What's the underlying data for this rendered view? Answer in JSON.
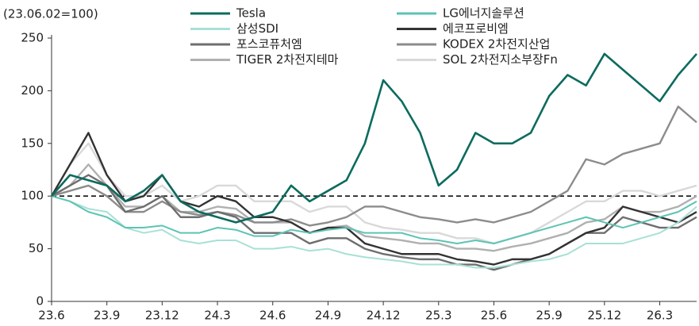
{
  "chart_data": {
    "type": "line",
    "y_label": "(23.06.02=100)",
    "categories": [
      "23.6",
      null,
      null,
      "23.9",
      null,
      null,
      "23.12",
      null,
      null,
      "24.3",
      null,
      null,
      "24.6",
      null,
      null,
      "24.9",
      null,
      null,
      "24.12",
      null,
      null,
      "25.3",
      null,
      null,
      "25.6",
      null,
      null,
      "25.9",
      null,
      null,
      "25.12",
      null,
      null,
      "26.3",
      null,
      null
    ],
    "ylim": [
      0,
      250
    ],
    "yticks": [
      0,
      50,
      100,
      150,
      200,
      250
    ],
    "reference_line": 100,
    "series": [
      {
        "name": "Tesla",
        "color": "#0b6b5e",
        "width": 2.6,
        "values": [
          100,
          120,
          115,
          110,
          95,
          105,
          120,
          95,
          85,
          80,
          75,
          80,
          85,
          110,
          95,
          105,
          115,
          150,
          210,
          190,
          160,
          110,
          125,
          160,
          150,
          150,
          160,
          195,
          215,
          205,
          235,
          220,
          205,
          190,
          215,
          235
        ]
      },
      {
        "name": "LG에너지솔루션",
        "color": "#5cc4b4",
        "width": 2,
        "values": [
          100,
          95,
          85,
          80,
          70,
          70,
          72,
          65,
          65,
          70,
          68,
          62,
          62,
          68,
          65,
          68,
          70,
          65,
          65,
          65,
          60,
          58,
          55,
          58,
          55,
          60,
          65,
          70,
          75,
          80,
          75,
          70,
          75,
          80,
          85,
          95
        ]
      },
      {
        "name": "삼성SDI",
        "color": "#a8e0d6",
        "width": 2,
        "values": [
          100,
          95,
          88,
          85,
          70,
          65,
          68,
          58,
          55,
          58,
          58,
          50,
          50,
          52,
          48,
          50,
          45,
          42,
          40,
          38,
          35,
          35,
          35,
          32,
          32,
          35,
          38,
          40,
          45,
          55,
          55,
          55,
          60,
          65,
          75,
          90
        ]
      },
      {
        "name": "에코프로비엠",
        "color": "#333333",
        "width": 2.4,
        "values": [
          100,
          130,
          160,
          120,
          95,
          100,
          120,
          95,
          90,
          100,
          95,
          80,
          80,
          75,
          65,
          70,
          70,
          55,
          50,
          45,
          45,
          45,
          40,
          38,
          35,
          40,
          40,
          45,
          55,
          65,
          70,
          90,
          85,
          80,
          75,
          85
        ]
      },
      {
        "name": "포스코퓨처엠",
        "color": "#6e6e6e",
        "width": 2.4,
        "values": [
          100,
          110,
          120,
          110,
          85,
          90,
          100,
          80,
          80,
          85,
          80,
          65,
          65,
          65,
          55,
          60,
          60,
          50,
          45,
          42,
          40,
          40,
          35,
          35,
          30,
          35,
          40,
          45,
          55,
          65,
          65,
          80,
          75,
          70,
          70,
          80
        ]
      },
      {
        "name": "KODEX 2차전지산업",
        "color": "#8c8c8c",
        "width": 2.4,
        "values": [
          100,
          105,
          110,
          100,
          85,
          85,
          95,
          85,
          82,
          85,
          82,
          75,
          75,
          78,
          72,
          75,
          80,
          90,
          90,
          85,
          80,
          78,
          75,
          78,
          75,
          80,
          85,
          95,
          105,
          135,
          130,
          140,
          145,
          150,
          185,
          170
        ]
      },
      {
        "name": "TIGER 2차전지테마",
        "color": "#b0b0b0",
        "width": 2.4,
        "values": [
          100,
          110,
          130,
          110,
          90,
          90,
          100,
          85,
          85,
          90,
          88,
          75,
          75,
          75,
          65,
          70,
          72,
          62,
          60,
          58,
          55,
          55,
          50,
          50,
          48,
          52,
          55,
          60,
          65,
          75,
          78,
          90,
          85,
          85,
          90,
          100
        ]
      },
      {
        "name": "SOL 2차전지소부장Fn",
        "color": "#d9d9d9",
        "width": 2.4,
        "values": [
          100,
          130,
          150,
          120,
          100,
          100,
          110,
          95,
          100,
          110,
          110,
          95,
          95,
          95,
          85,
          90,
          90,
          75,
          70,
          68,
          65,
          65,
          60,
          60,
          55,
          60,
          65,
          75,
          85,
          95,
          95,
          105,
          105,
          100,
          105,
          110
        ]
      }
    ]
  }
}
